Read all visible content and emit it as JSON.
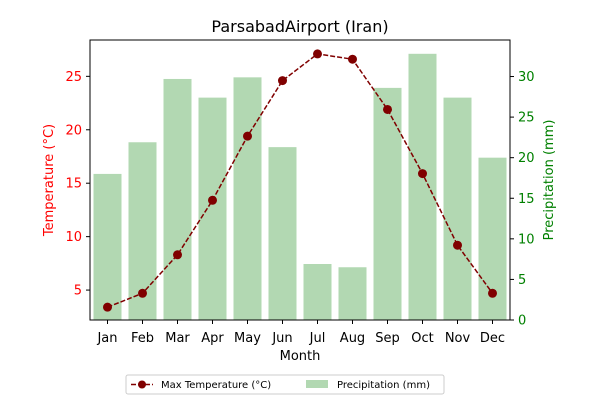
{
  "chart_data": {
    "type": "bar+line",
    "title": "ParsabadAirport (Iran)",
    "xlabel": "Month",
    "categories": [
      "Jan",
      "Feb",
      "Mar",
      "Apr",
      "May",
      "Jun",
      "Jul",
      "Aug",
      "Sep",
      "Oct",
      "Nov",
      "Dec"
    ],
    "y_left": {
      "label": "Temperature (°C)",
      "range": [
        2.2,
        28.4
      ],
      "ticks": [
        5,
        10,
        15,
        20,
        25
      ],
      "color": "#ff0000"
    },
    "y_right": {
      "label": "Precipitation (mm)",
      "range": [
        0,
        34.5
      ],
      "ticks": [
        0,
        5,
        10,
        15,
        20,
        25,
        30
      ],
      "color": "#008000"
    },
    "series": [
      {
        "name": "Max Temperature (°C)",
        "type": "line",
        "axis": "left",
        "color": "#800000",
        "style": "dashed",
        "marker": "circle",
        "values": [
          3.4,
          4.7,
          8.3,
          13.4,
          19.4,
          24.6,
          27.1,
          26.6,
          21.9,
          15.9,
          9.2,
          4.7
        ]
      },
      {
        "name": "Precipitation (mm)",
        "type": "bar",
        "axis": "right",
        "color": "#b2d8b2",
        "values": [
          18.0,
          21.9,
          29.7,
          27.4,
          29.9,
          21.3,
          6.9,
          6.5,
          28.6,
          32.8,
          27.4,
          20.0
        ]
      }
    ],
    "grid": false,
    "legend": "bottom-center"
  }
}
